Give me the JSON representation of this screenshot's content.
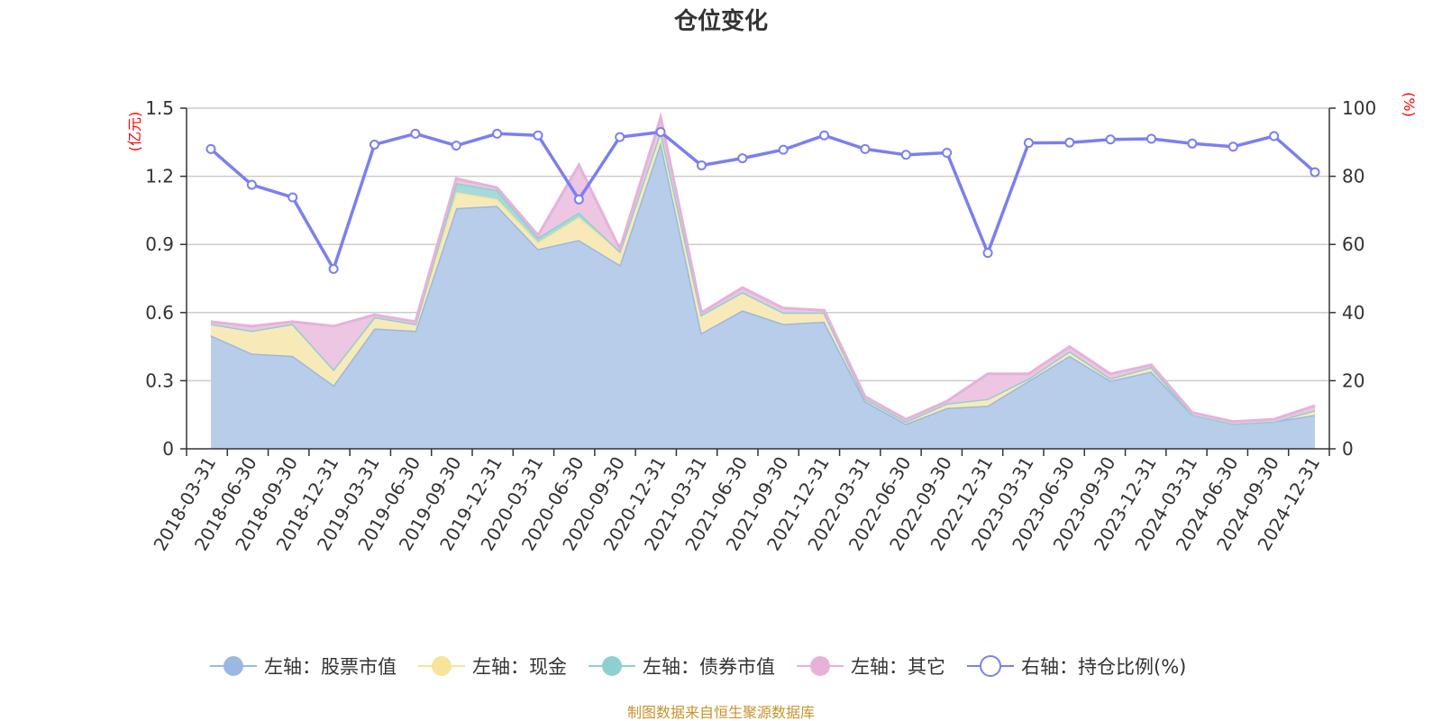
{
  "chart_data": {
    "type": "area",
    "title": "仓位变化",
    "left_axis_unit": "(亿元)",
    "right_axis_unit": "(%)",
    "left_axis": {
      "min": 0,
      "max": 1.5,
      "ticks": [
        "0",
        "0.3",
        "0.6",
        "0.9",
        "1.2",
        "1.5"
      ]
    },
    "right_axis": {
      "min": 0,
      "max": 100,
      "ticks": [
        "0",
        "20",
        "40",
        "60",
        "80",
        "100"
      ]
    },
    "grid": true,
    "legend_position": "bottom",
    "x": [
      "2018-03-31",
      "2018-06-30",
      "2018-09-30",
      "2018-12-31",
      "2019-03-31",
      "2019-06-30",
      "2019-09-30",
      "2019-12-31",
      "2020-03-31",
      "2020-06-30",
      "2020-09-30",
      "2020-12-31",
      "2021-03-31",
      "2021-06-30",
      "2021-09-30",
      "2021-12-31",
      "2022-03-31",
      "2022-06-30",
      "2022-09-30",
      "2022-12-31",
      "2023-03-31",
      "2023-06-30",
      "2023-09-30",
      "2023-12-31",
      "2024-03-31",
      "2024-06-30",
      "2024-09-30",
      "2024-12-31"
    ],
    "series": [
      {
        "name": "左轴：股票市值",
        "axis": "left",
        "stack": true,
        "color": "#9bb8e0",
        "fill": "#b8cdea",
        "values": [
          0.5,
          0.42,
          0.41,
          0.28,
          0.53,
          0.52,
          1.06,
          1.07,
          0.88,
          0.92,
          0.81,
          1.35,
          0.51,
          0.61,
          0.55,
          0.56,
          0.21,
          0.11,
          0.18,
          0.19,
          0.3,
          0.41,
          0.3,
          0.34,
          0.15,
          0.11,
          0.12,
          0.15
        ]
      },
      {
        "name": "左轴：现金",
        "axis": "left",
        "stack": true,
        "color": "#f5e49a",
        "fill": "#f8eab8",
        "values": [
          0.05,
          0.1,
          0.14,
          0.07,
          0.05,
          0.03,
          0.07,
          0.03,
          0.03,
          0.1,
          0.06,
          0.05,
          0.08,
          0.08,
          0.05,
          0.04,
          0.01,
          0.01,
          0.02,
          0.03,
          0.01,
          0.02,
          0.01,
          0.02,
          0.0,
          0.0,
          0.0,
          0.02
        ]
      },
      {
        "name": "左轴：债券市值",
        "axis": "left",
        "stack": true,
        "color": "#8ed0d0",
        "fill": "#a4dada",
        "values": [
          0.0,
          0.0,
          0.0,
          0.0,
          0.0,
          0.0,
          0.04,
          0.04,
          0.02,
          0.02,
          0.0,
          0.0,
          0.0,
          0.0,
          0.0,
          0.0,
          0.0,
          0.0,
          0.0,
          0.0,
          0.0,
          0.0,
          0.0,
          0.0,
          0.0,
          0.0,
          0.0,
          0.0
        ]
      },
      {
        "name": "左轴：其它",
        "axis": "left",
        "stack": true,
        "color": "#e6b2d8",
        "fill": "#ecc6e2",
        "values": [
          0.01,
          0.02,
          0.01,
          0.19,
          0.01,
          0.01,
          0.02,
          0.01,
          0.01,
          0.21,
          0.01,
          0.06,
          0.01,
          0.02,
          0.02,
          0.01,
          0.01,
          0.01,
          0.01,
          0.11,
          0.02,
          0.02,
          0.02,
          0.01,
          0.01,
          0.01,
          0.01,
          0.02
        ]
      },
      {
        "name": "右轴：持仓比例(%)",
        "axis": "right",
        "type": "line",
        "color": "#7b7ff0",
        "values": [
          88.0,
          77.5,
          73.8,
          52.8,
          89.3,
          92.5,
          89.0,
          92.5,
          92.0,
          73.2,
          91.5,
          93.0,
          83.2,
          85.3,
          87.8,
          92.0,
          88.0,
          86.3,
          86.9,
          57.5,
          89.8,
          89.9,
          90.8,
          91.0,
          89.6,
          88.7,
          91.8,
          81.2
        ]
      }
    ]
  },
  "source_note": "制图数据来自恒生聚源数据库"
}
